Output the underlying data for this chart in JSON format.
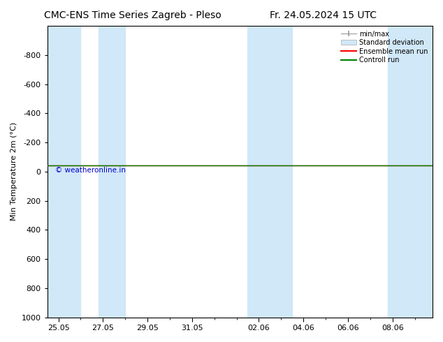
{
  "title_left": "CMC-ENS Time Series Zagreb - Pleso",
  "title_right": "Fr. 24.05.2024 15 UTC",
  "ylabel": "Min Temperature 2m (°C)",
  "ylim_bottom": 1000,
  "ylim_top": -1000,
  "yticks": [
    -800,
    -600,
    -400,
    -200,
    0,
    200,
    400,
    600,
    800,
    1000
  ],
  "xtick_labels": [
    "25.05",
    "27.05",
    "29.05",
    "31.05",
    "02.06",
    "04.06",
    "06.06",
    "08.06"
  ],
  "xtick_positions": [
    0,
    2,
    4,
    6,
    9,
    11,
    13,
    15
  ],
  "xlim": [
    -0.5,
    16.8
  ],
  "shaded_bands": [
    [
      -0.5,
      1.0
    ],
    [
      1.8,
      3.0
    ],
    [
      8.5,
      10.5
    ],
    [
      14.8,
      16.8
    ]
  ],
  "shaded_color": "#d0e8f8",
  "control_run_y": -40,
  "control_run_color": "#008000",
  "ensemble_mean_color": "#ff0000",
  "watermark": "© weatheronline.in",
  "watermark_color": "#0000cc",
  "bg_color": "#ffffff",
  "legend_labels": [
    "min/max",
    "Standard deviation",
    "Ensemble mean run",
    "Controll run"
  ],
  "legend_colors": [
    "#aaaaaa",
    "#d0e8f8",
    "#ff0000",
    "#008000"
  ],
  "title_fontsize": 10,
  "axis_fontsize": 8,
  "tick_fontsize": 8
}
